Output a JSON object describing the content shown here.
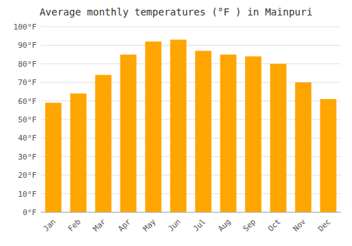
{
  "chart_data": {
    "type": "bar",
    "title": "Average monthly temperatures (°F ) in Mainpuri",
    "categories": [
      "Jan",
      "Feb",
      "Mar",
      "Apr",
      "May",
      "Jun",
      "Jul",
      "Aug",
      "Sep",
      "Oct",
      "Nov",
      "Dec"
    ],
    "values": [
      59,
      64,
      74,
      85,
      92,
      93,
      87,
      85,
      84,
      80,
      70,
      61
    ],
    "color": "#FFA500",
    "ylim": [
      0,
      100
    ],
    "yticks": [
      {
        "value": 0,
        "label": "0°F"
      },
      {
        "value": 10,
        "label": "10°F"
      },
      {
        "value": 20,
        "label": "20°F"
      },
      {
        "value": 30,
        "label": "30°F"
      },
      {
        "value": 40,
        "label": "40°F"
      },
      {
        "value": 50,
        "label": "50°F"
      },
      {
        "value": 60,
        "label": "60°F"
      },
      {
        "value": 70,
        "label": "70°F"
      },
      {
        "value": 80,
        "label": "80°F"
      },
      {
        "value": 90,
        "label": "90°F"
      },
      {
        "value": 100,
        "label": "100°F"
      }
    ],
    "grid": true
  }
}
